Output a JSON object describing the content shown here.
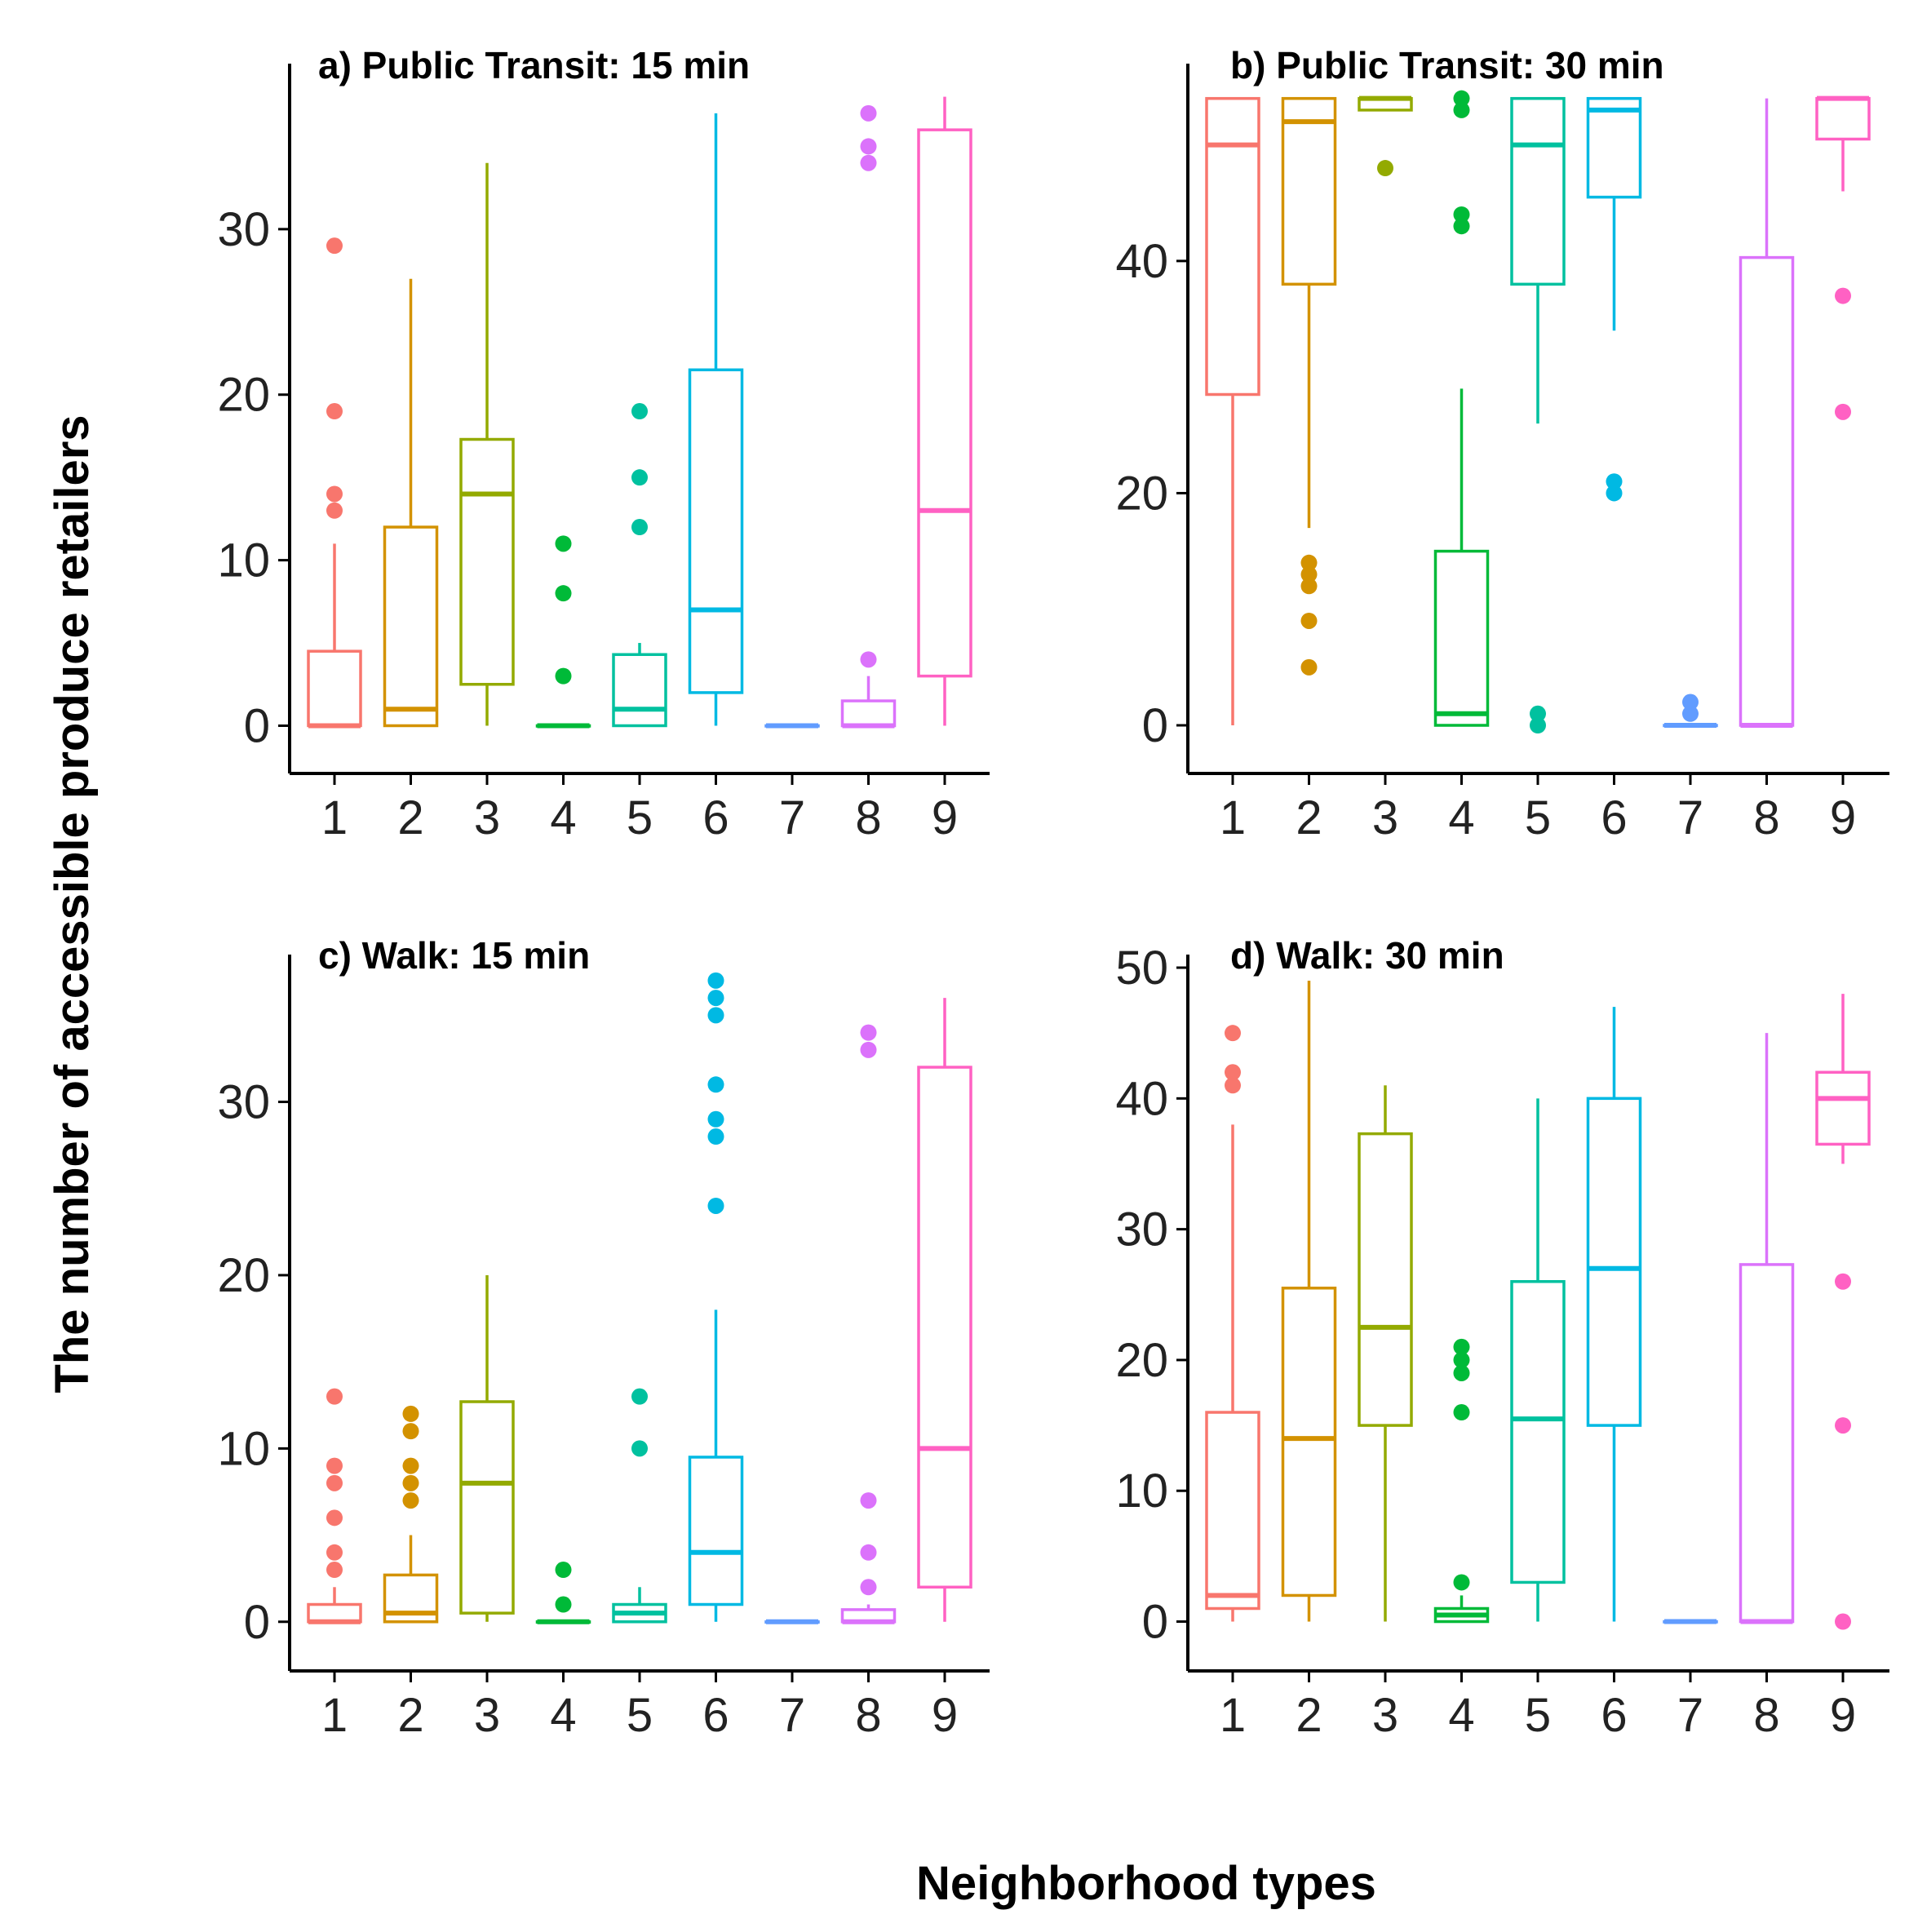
{
  "figure": {
    "ylabel": "The number of accessible produce retailers",
    "xlabel": "Neighborhood types"
  },
  "palette": [
    "#F8766D",
    "#D39200",
    "#93AA00",
    "#00BA38",
    "#00C19F",
    "#00B9E3",
    "#619CFF",
    "#DB72FB",
    "#FF61C3"
  ],
  "chart_data": [
    {
      "type": "box",
      "title": "a) Public Transit: 15 min",
      "categories": [
        "1",
        "2",
        "3",
        "4",
        "5",
        "6",
        "7",
        "8",
        "9"
      ],
      "ylim": [
        -1.8,
        40
      ],
      "yticks": [
        0,
        10,
        20,
        30
      ],
      "boxes": [
        {
          "q1": 0,
          "median": 0,
          "q3": 4.5,
          "lo": 0,
          "hi": 11,
          "outliers": [
            13,
            14,
            19,
            29
          ]
        },
        {
          "q1": 0,
          "median": 1,
          "q3": 12,
          "lo": 0,
          "hi": 27,
          "outliers": []
        },
        {
          "q1": 2.5,
          "median": 14,
          "q3": 17.3,
          "lo": 0,
          "hi": 34,
          "outliers": []
        },
        {
          "q1": 0,
          "median": 0,
          "q3": 0,
          "lo": 0,
          "hi": 0,
          "outliers": [
            3,
            8,
            11
          ]
        },
        {
          "q1": 0,
          "median": 1,
          "q3": 4.3,
          "lo": 0,
          "hi": 5,
          "outliers": [
            12,
            15,
            19
          ]
        },
        {
          "q1": 2,
          "median": 7,
          "q3": 21.5,
          "lo": 0,
          "hi": 37,
          "outliers": []
        },
        {
          "q1": 0,
          "median": 0,
          "q3": 0,
          "lo": 0,
          "hi": 0,
          "outliers": []
        },
        {
          "q1": 0,
          "median": 0,
          "q3": 1.5,
          "lo": 0,
          "hi": 3,
          "outliers": [
            4,
            34,
            35,
            37
          ]
        },
        {
          "q1": 3,
          "median": 13,
          "q3": 36,
          "lo": 0,
          "hi": 38,
          "outliers": []
        }
      ]
    },
    {
      "type": "box",
      "title": "b) Public Transit: 30 min",
      "categories": [
        "1",
        "2",
        "3",
        "4",
        "5",
        "6",
        "7",
        "8",
        "9"
      ],
      "ylim": [
        -2.6,
        57
      ],
      "yticks": [
        0,
        20,
        40
      ],
      "boxes": [
        {
          "q1": 28.5,
          "median": 50,
          "q3": 54,
          "lo": 0,
          "hi": 54,
          "outliers": []
        },
        {
          "q1": 38,
          "median": 52,
          "q3": 54,
          "lo": 17,
          "hi": 54,
          "outliers": [
            5,
            9,
            12,
            13,
            14
          ]
        },
        {
          "q1": 53,
          "median": 54,
          "q3": 54,
          "lo": 53,
          "hi": 54,
          "outliers": [
            48
          ]
        },
        {
          "q1": 0,
          "median": 1,
          "q3": 15,
          "lo": 0,
          "hi": 29,
          "outliers": [
            43,
            44,
            53,
            54
          ]
        },
        {
          "q1": 38,
          "median": 50,
          "q3": 54,
          "lo": 26,
          "hi": 54,
          "outliers": [
            0,
            1
          ]
        },
        {
          "q1": 45.5,
          "median": 53,
          "q3": 54,
          "lo": 34,
          "hi": 54,
          "outliers": [
            20,
            21
          ]
        },
        {
          "q1": 0,
          "median": 0,
          "q3": 0,
          "lo": 0,
          "hi": 0,
          "outliers": [
            1,
            2
          ]
        },
        {
          "q1": 0,
          "median": 0,
          "q3": 40.3,
          "lo": 0,
          "hi": 54,
          "outliers": []
        },
        {
          "q1": 50.5,
          "median": 54,
          "q3": 54,
          "lo": 46,
          "hi": 54,
          "outliers": [
            27,
            37
          ]
        }
      ]
    },
    {
      "type": "box",
      "title": "c) Walk: 15 min",
      "categories": [
        "1",
        "2",
        "3",
        "4",
        "5",
        "6",
        "7",
        "8",
        "9"
      ],
      "ylim": [
        -1.8,
        38.5
      ],
      "yticks": [
        0,
        10,
        20,
        30
      ],
      "boxes": [
        {
          "q1": 0,
          "median": 0,
          "q3": 1,
          "lo": 0,
          "hi": 2,
          "outliers": [
            3,
            4,
            6,
            8,
            9,
            13
          ]
        },
        {
          "q1": 0,
          "median": 0.5,
          "q3": 2.7,
          "lo": 0,
          "hi": 5,
          "outliers": [
            7,
            8,
            9,
            11,
            12
          ]
        },
        {
          "q1": 0.5,
          "median": 8,
          "q3": 12.7,
          "lo": 0,
          "hi": 20,
          "outliers": []
        },
        {
          "q1": 0,
          "median": 0,
          "q3": 0,
          "lo": 0,
          "hi": 0,
          "outliers": [
            1,
            3
          ]
        },
        {
          "q1": 0,
          "median": 0.5,
          "q3": 1,
          "lo": 0,
          "hi": 2,
          "outliers": [
            10,
            13
          ]
        },
        {
          "q1": 1,
          "median": 4,
          "q3": 9.5,
          "lo": 0,
          "hi": 18,
          "outliers": [
            24,
            28,
            29,
            31,
            35,
            36,
            37
          ]
        },
        {
          "q1": 0,
          "median": 0,
          "q3": 0,
          "lo": 0,
          "hi": 0,
          "outliers": []
        },
        {
          "q1": 0,
          "median": 0,
          "q3": 0.7,
          "lo": 0,
          "hi": 1,
          "outliers": [
            2,
            4,
            7,
            33,
            34
          ]
        },
        {
          "q1": 2,
          "median": 10,
          "q3": 32,
          "lo": 0,
          "hi": 36,
          "outliers": []
        }
      ]
    },
    {
      "type": "box",
      "title": "d) Walk: 30 min",
      "categories": [
        "1",
        "2",
        "3",
        "4",
        "5",
        "6",
        "7",
        "8",
        "9"
      ],
      "ylim": [
        -2.4,
        51
      ],
      "yticks": [
        0,
        10,
        20,
        30,
        40,
        50
      ],
      "boxes": [
        {
          "q1": 1,
          "median": 2,
          "q3": 16,
          "lo": 0,
          "hi": 38,
          "outliers": [
            41,
            42,
            45
          ]
        },
        {
          "q1": 2,
          "median": 14,
          "q3": 25.5,
          "lo": 0,
          "hi": 49,
          "outliers": []
        },
        {
          "q1": 15,
          "median": 22.5,
          "q3": 37.3,
          "lo": 0,
          "hi": 41,
          "outliers": []
        },
        {
          "q1": 0,
          "median": 0.5,
          "q3": 1,
          "lo": 0,
          "hi": 2,
          "outliers": [
            3,
            16,
            19,
            20,
            21
          ]
        },
        {
          "q1": 3,
          "median": 15.5,
          "q3": 26,
          "lo": 0,
          "hi": 40,
          "outliers": []
        },
        {
          "q1": 15,
          "median": 27,
          "q3": 40,
          "lo": 0,
          "hi": 47,
          "outliers": []
        },
        {
          "q1": 0,
          "median": 0,
          "q3": 0,
          "lo": 0,
          "hi": 0,
          "outliers": []
        },
        {
          "q1": 0,
          "median": 0,
          "q3": 27.3,
          "lo": 0,
          "hi": 45,
          "outliers": []
        },
        {
          "q1": 36.5,
          "median": 40,
          "q3": 42,
          "lo": 35,
          "hi": 48,
          "outliers": [
            0,
            15,
            26
          ]
        }
      ]
    }
  ]
}
